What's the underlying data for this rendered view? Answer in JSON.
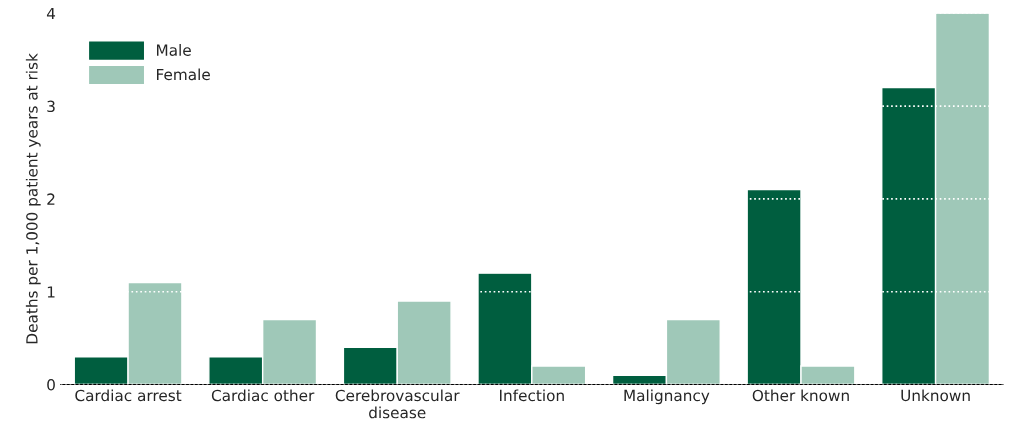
{
  "chart_data": {
    "type": "bar",
    "ylabel": "Deaths per 1,000 patient years at risk",
    "categories": [
      "Cardiac arrest",
      "Cardiac other",
      "Cerebrovascular\ndisease",
      "Infection",
      "Malignancy",
      "Other known",
      "Unknown"
    ],
    "series": [
      {
        "name": "Male",
        "color": "#005e3f",
        "values": [
          0.3,
          0.3,
          0.4,
          1.2,
          0.1,
          2.1,
          3.2
        ]
      },
      {
        "name": "Female",
        "color": "#9fc8b8",
        "values": [
          1.1,
          0.7,
          0.9,
          0.2,
          0.7,
          0.2,
          4.0
        ]
      }
    ],
    "ylim": [
      0,
      4
    ],
    "yticks": [
      0,
      1,
      2,
      3,
      4
    ],
    "grid": "y",
    "legend": "top left"
  }
}
